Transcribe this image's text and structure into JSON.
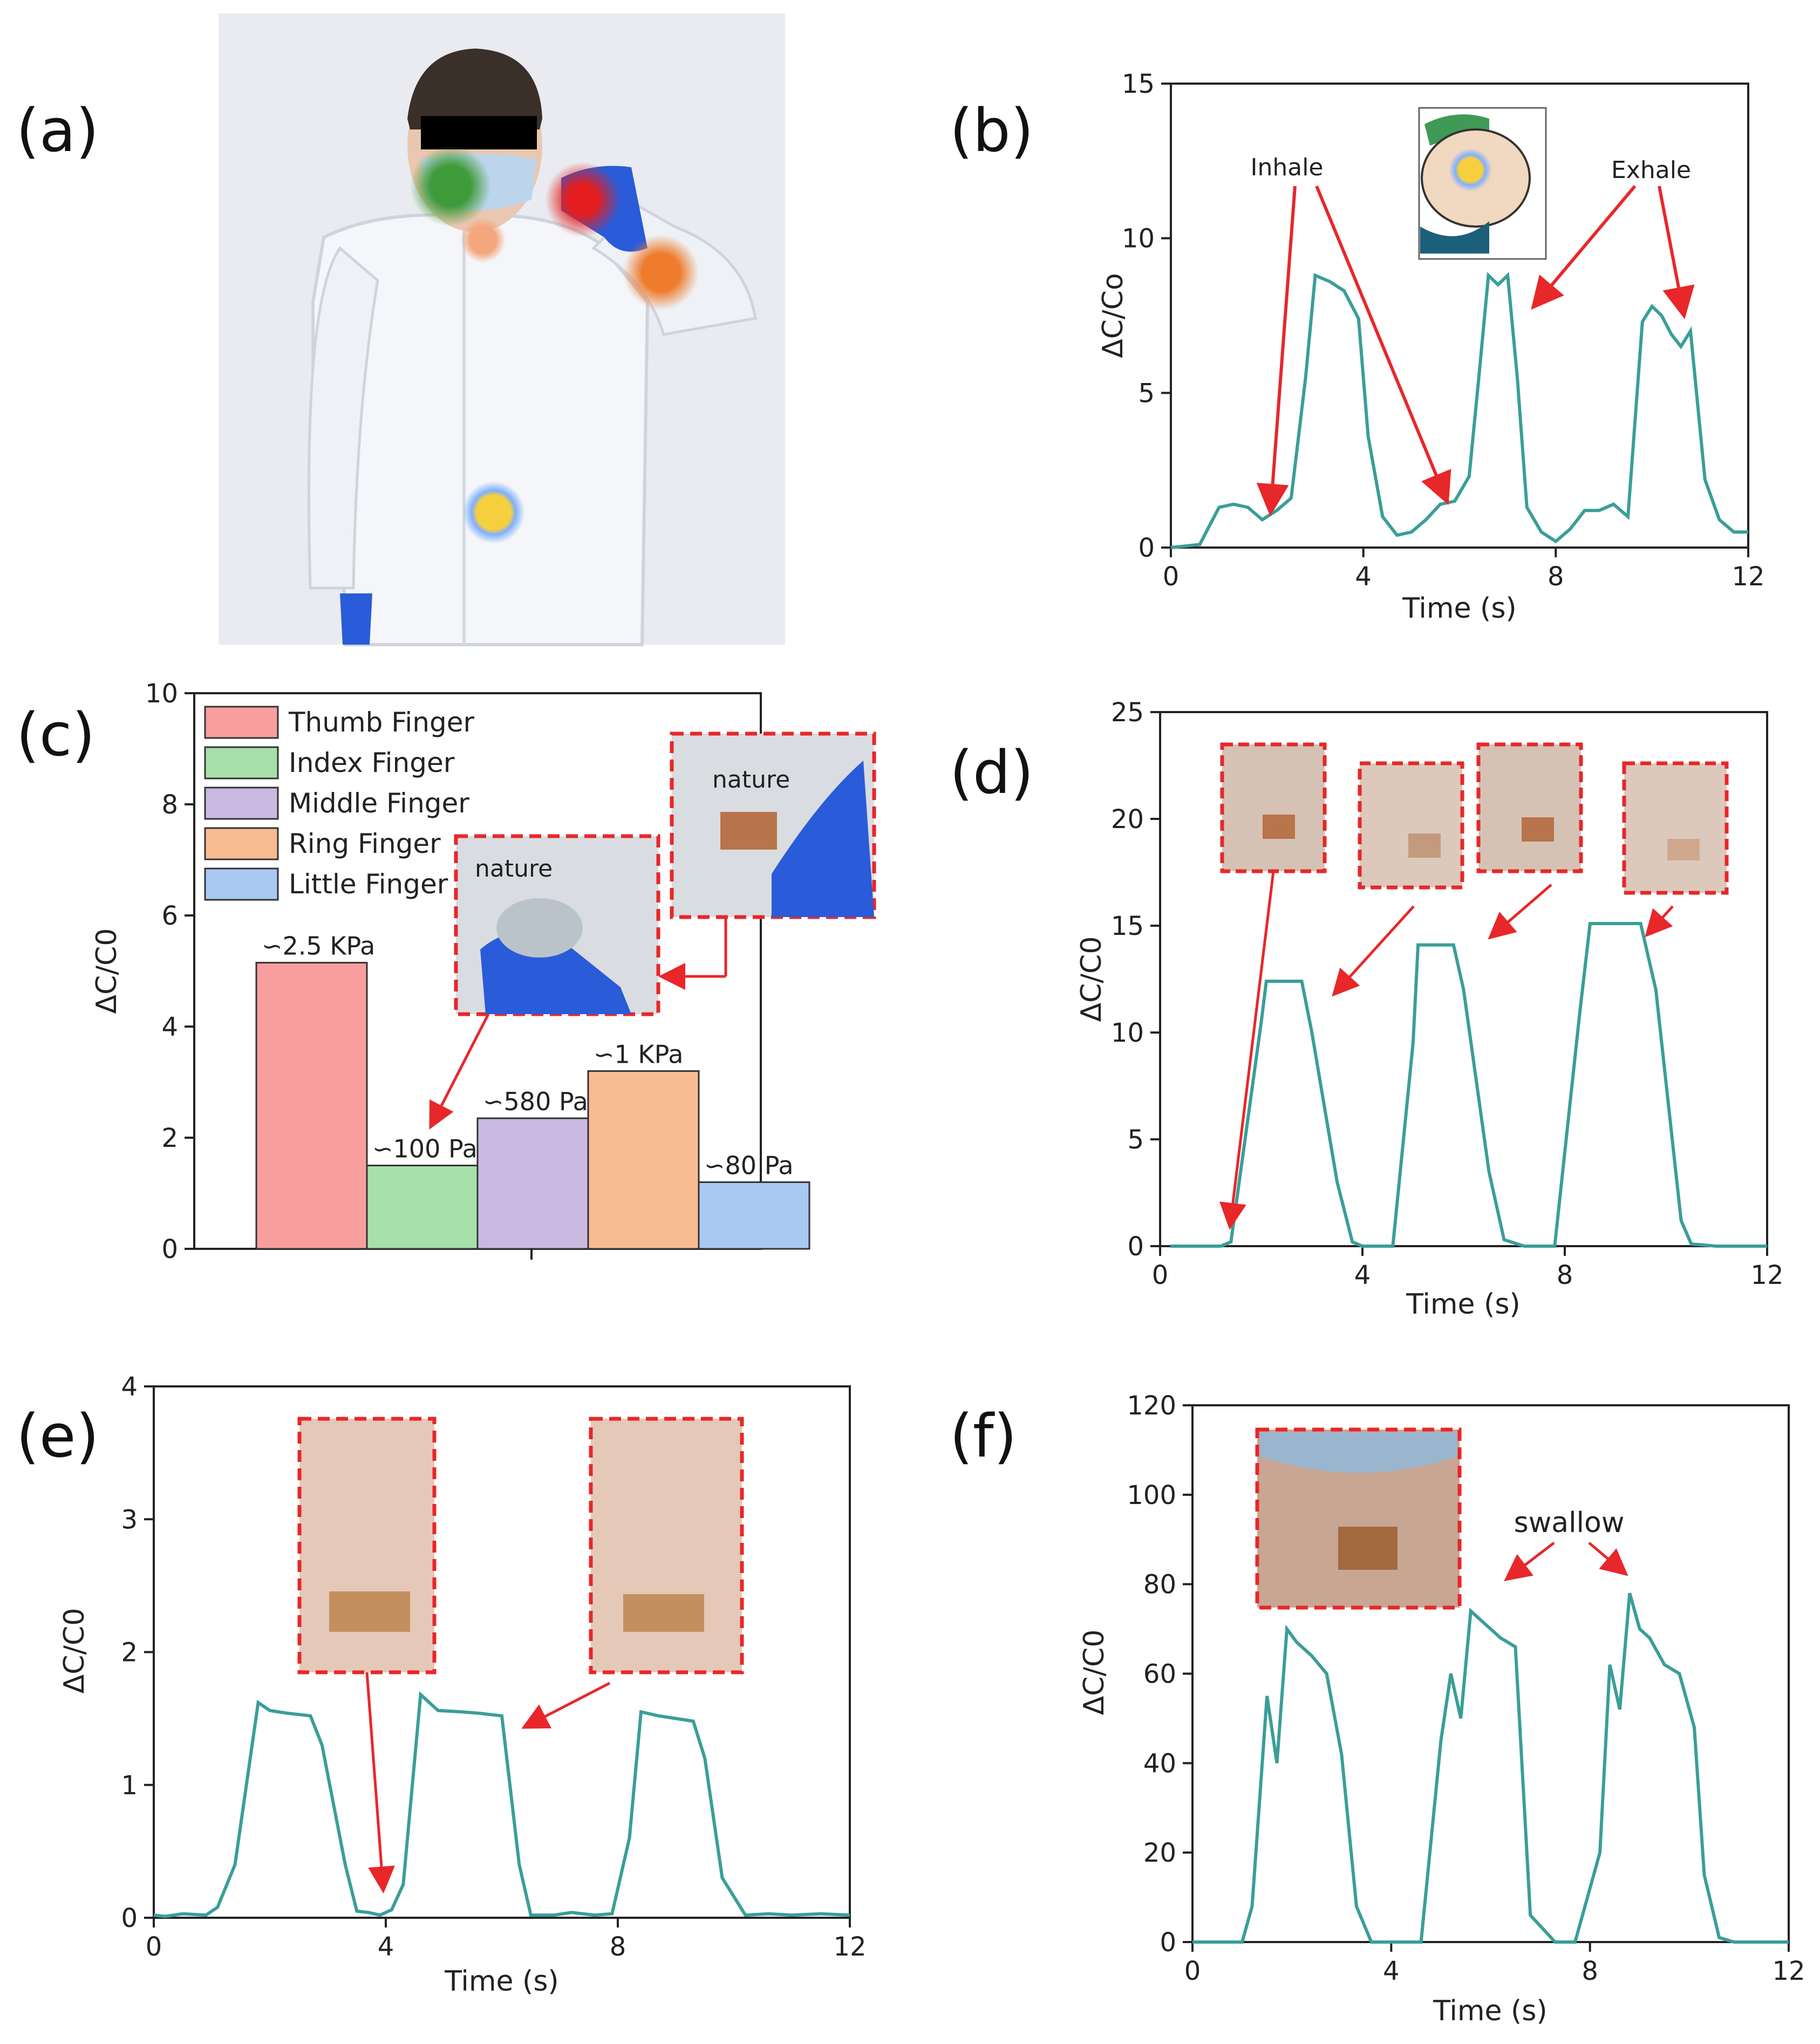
{
  "panel_labels": {
    "a": "(a)",
    "b": "(b)",
    "c": "(c)",
    "d": "(d)",
    "e": "(e)",
    "f": "(f)"
  },
  "colors": {
    "line": "#3a9e98",
    "arrow": "#e8272a",
    "photo_bg": "#e9ebf0",
    "coat": "#f3f5f8",
    "glove": "#2a5bd8",
    "sensor_green": "#3f9a3a",
    "sensor_red": "#e41e1e",
    "sensor_peach": "#f4a77f",
    "sensor_orange": "#ef7b2d",
    "sensor_yellow": "#f6cf3f"
  },
  "chart_data": [
    {
      "panel": "b",
      "type": "line",
      "xlabel": "Time (s)",
      "ylabel": "ΔC/Co",
      "xlim": [
        0,
        12
      ],
      "ylim": [
        0,
        15
      ],
      "xticks": [
        "0",
        "4",
        "8",
        "12"
      ],
      "yticks": [
        "0",
        "5",
        "10",
        "15"
      ],
      "annotations": [
        "Inhale",
        "Exhale"
      ],
      "x": [
        0,
        0.6,
        1.0,
        1.3,
        1.6,
        1.9,
        2.2,
        2.5,
        2.8,
        3.0,
        3.3,
        3.6,
        3.9,
        4.1,
        4.4,
        4.7,
        5.0,
        5.3,
        5.6,
        5.9,
        6.2,
        6.4,
        6.6,
        6.8,
        7.0,
        7.2,
        7.4,
        7.7,
        8.0,
        8.3,
        8.6,
        8.9,
        9.2,
        9.5,
        9.8,
        10.0,
        10.2,
        10.4,
        10.6,
        10.8,
        11.1,
        11.4,
        11.7,
        12.0
      ],
      "y": [
        0,
        0.1,
        1.3,
        1.4,
        1.3,
        0.9,
        1.2,
        1.6,
        5.5,
        8.8,
        8.6,
        8.3,
        7.4,
        3.6,
        1.0,
        0.4,
        0.5,
        0.9,
        1.4,
        1.5,
        2.3,
        5.5,
        8.8,
        8.5,
        8.8,
        5.5,
        1.3,
        0.5,
        0.2,
        0.6,
        1.2,
        1.2,
        1.4,
        1.0,
        7.3,
        7.8,
        7.5,
        6.9,
        6.5,
        7.0,
        2.2,
        0.9,
        0.5,
        0.5
      ]
    },
    {
      "panel": "c",
      "type": "bar",
      "ylabel": "ΔC/C0",
      "ylim": [
        0,
        10
      ],
      "yticks": [
        "0",
        "2",
        "4",
        "6",
        "8",
        "10"
      ],
      "categories": [
        "Thumb Finger",
        "Index Finger",
        "Middle Finger",
        "Ring Finger",
        "Little Finger"
      ],
      "values": [
        5.15,
        1.5,
        2.35,
        3.2,
        1.2
      ],
      "bar_colors": [
        "#f99e9e",
        "#a7e0a8",
        "#cbb9e1",
        "#f9bb91",
        "#a9c9f3"
      ],
      "bar_labels": [
        "∽2.5 KPa",
        "∽100 Pa",
        "∽580 Pa",
        "∽1 KPa",
        "∽80 Pa"
      ],
      "photo_texts": [
        "nature",
        "nature"
      ],
      "legend_position": "top-left"
    },
    {
      "panel": "d",
      "type": "line",
      "xlabel": "Time (s)",
      "ylabel": "ΔC/C0",
      "xlim": [
        0,
        12
      ],
      "ylim": [
        0,
        25
      ],
      "xticks": [
        "0",
        "4",
        "8",
        "12"
      ],
      "yticks": [
        "0",
        "5",
        "10",
        "15",
        "20",
        "25"
      ],
      "x": [
        0.2,
        1.2,
        1.4,
        2.0,
        2.1,
        2.8,
        3.0,
        3.5,
        3.8,
        4.0,
        4.4,
        4.6,
        5.0,
        5.1,
        5.8,
        6.0,
        6.5,
        6.8,
        7.2,
        7.6,
        7.8,
        8.3,
        8.5,
        9.5,
        9.8,
        10.3,
        10.5,
        11.0,
        12.0
      ],
      "y": [
        0,
        0,
        0.2,
        10.5,
        12.4,
        12.4,
        10.0,
        3.0,
        0.2,
        0,
        0,
        0,
        9.5,
        14.1,
        14.1,
        12.0,
        3.5,
        0.3,
        0,
        0,
        0,
        11.0,
        15.1,
        15.1,
        12.0,
        1.2,
        0.1,
        0,
        0
      ]
    },
    {
      "panel": "e",
      "type": "line",
      "xlabel": "Time (s)",
      "ylabel": "ΔC/C0",
      "xlim": [
        0,
        12
      ],
      "ylim": [
        0,
        4
      ],
      "xticks": [
        "0",
        "4",
        "8",
        "12"
      ],
      "yticks": [
        "0",
        "1",
        "2",
        "3",
        "4"
      ],
      "x": [
        0,
        0.2,
        0.5,
        0.9,
        1.1,
        1.4,
        1.8,
        2.0,
        2.3,
        2.7,
        2.9,
        3.3,
        3.5,
        3.7,
        3.9,
        4.1,
        4.3,
        4.6,
        4.9,
        5.3,
        5.6,
        6.0,
        6.3,
        6.5,
        6.9,
        7.2,
        7.6,
        7.9,
        8.2,
        8.4,
        8.7,
        9.0,
        9.3,
        9.5,
        9.8,
        10.2,
        10.6,
        11.0,
        11.5,
        12.0
      ],
      "y": [
        0.02,
        0.01,
        0.03,
        0.02,
        0.08,
        0.4,
        1.62,
        1.56,
        1.54,
        1.52,
        1.3,
        0.4,
        0.05,
        0.04,
        0.02,
        0.06,
        0.25,
        1.68,
        1.56,
        1.55,
        1.54,
        1.52,
        0.4,
        0.02,
        0.02,
        0.04,
        0.02,
        0.03,
        0.6,
        1.55,
        1.52,
        1.5,
        1.48,
        1.2,
        0.3,
        0.02,
        0.03,
        0.02,
        0.03,
        0.02
      ]
    },
    {
      "panel": "f",
      "type": "line",
      "xlabel": "Time (s)",
      "ylabel": "ΔC/C0",
      "xlim": [
        0,
        12
      ],
      "ylim": [
        0,
        120
      ],
      "xticks": [
        "0",
        "4",
        "8",
        "12"
      ],
      "yticks": [
        "0",
        "20",
        "40",
        "60",
        "80",
        "100",
        "120"
      ],
      "annotations": [
        "swallow"
      ],
      "x": [
        0,
        1.0,
        1.2,
        1.5,
        1.7,
        1.9,
        2.1,
        2.4,
        2.7,
        3.0,
        3.3,
        3.6,
        3.9,
        4.4,
        4.6,
        5.0,
        5.2,
        5.4,
        5.6,
        5.9,
        6.2,
        6.5,
        6.8,
        7.3,
        7.7,
        8.2,
        8.4,
        8.6,
        8.8,
        9.0,
        9.2,
        9.5,
        9.8,
        10.1,
        10.3,
        10.6,
        10.9,
        11.2,
        11.6,
        12.0
      ],
      "y": [
        0,
        0,
        8,
        55,
        40,
        70,
        67,
        64,
        60,
        42,
        8,
        0,
        0,
        0,
        0,
        45,
        60,
        50,
        74,
        71,
        68,
        66,
        6,
        0,
        0,
        20,
        62,
        52,
        78,
        70,
        68,
        62,
        60,
        48,
        15,
        1,
        0,
        0,
        0,
        0
      ]
    }
  ]
}
